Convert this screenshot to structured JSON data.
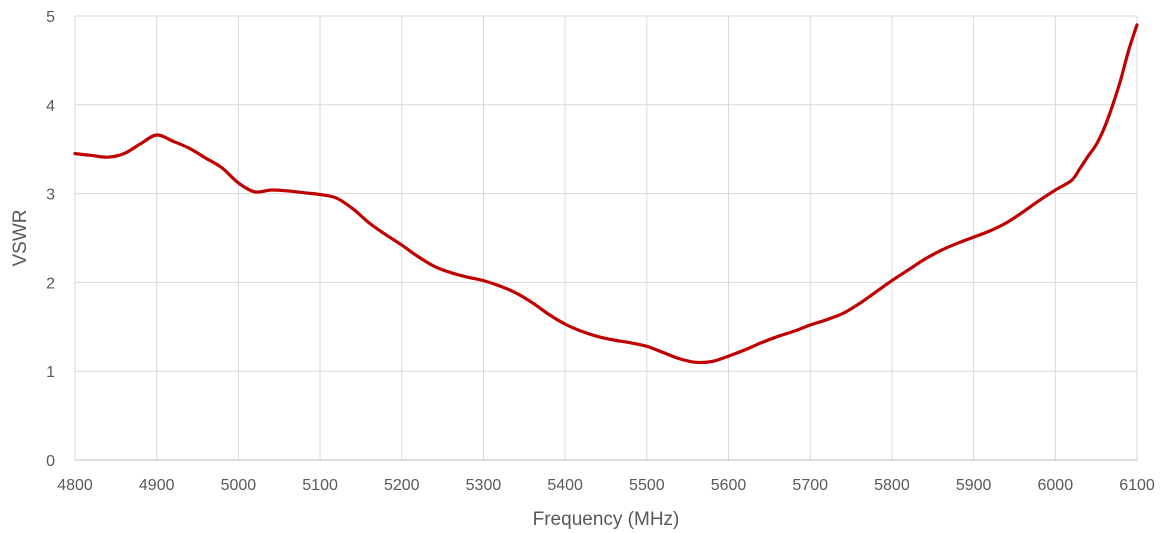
{
  "chart_data": {
    "type": "line",
    "title": "",
    "xlabel": "Frequency (MHz)",
    "ylabel": "VSWR",
    "xlim": [
      4800,
      6100
    ],
    "ylim": [
      0,
      5
    ],
    "x_ticks": [
      "4800",
      "4900",
      "5000",
      "5100",
      "5200",
      "5300",
      "5400",
      "5500",
      "5600",
      "5700",
      "5800",
      "5900",
      "6000",
      "6100"
    ],
    "y_ticks": [
      "0",
      "1",
      "2",
      "3",
      "4",
      "5"
    ],
    "grid": "vertical-and-horizontal",
    "legend": "none",
    "series": [
      {
        "color": "#c00000",
        "points": [
          [
            4800,
            3.45
          ],
          [
            4820,
            3.43
          ],
          [
            4840,
            3.41
          ],
          [
            4860,
            3.45
          ],
          [
            4880,
            3.56
          ],
          [
            4900,
            3.66
          ],
          [
            4920,
            3.59
          ],
          [
            4940,
            3.51
          ],
          [
            4960,
            3.4
          ],
          [
            4980,
            3.29
          ],
          [
            5000,
            3.12
          ],
          [
            5020,
            3.02
          ],
          [
            5040,
            3.04
          ],
          [
            5060,
            3.03
          ],
          [
            5080,
            3.01
          ],
          [
            5100,
            2.99
          ],
          [
            5120,
            2.95
          ],
          [
            5140,
            2.83
          ],
          [
            5160,
            2.67
          ],
          [
            5180,
            2.54
          ],
          [
            5200,
            2.42
          ],
          [
            5220,
            2.29
          ],
          [
            5240,
            2.18
          ],
          [
            5260,
            2.11
          ],
          [
            5280,
            2.06
          ],
          [
            5300,
            2.02
          ],
          [
            5320,
            1.96
          ],
          [
            5340,
            1.88
          ],
          [
            5360,
            1.77
          ],
          [
            5380,
            1.64
          ],
          [
            5400,
            1.53
          ],
          [
            5420,
            1.45
          ],
          [
            5440,
            1.39
          ],
          [
            5460,
            1.35
          ],
          [
            5480,
            1.32
          ],
          [
            5500,
            1.28
          ],
          [
            5520,
            1.21
          ],
          [
            5540,
            1.14
          ],
          [
            5560,
            1.1
          ],
          [
            5580,
            1.11
          ],
          [
            5600,
            1.17
          ],
          [
            5620,
            1.24
          ],
          [
            5640,
            1.32
          ],
          [
            5660,
            1.39
          ],
          [
            5680,
            1.45
          ],
          [
            5700,
            1.52
          ],
          [
            5720,
            1.58
          ],
          [
            5740,
            1.65
          ],
          [
            5760,
            1.76
          ],
          [
            5780,
            1.89
          ],
          [
            5800,
            2.02
          ],
          [
            5820,
            2.14
          ],
          [
            5840,
            2.26
          ],
          [
            5860,
            2.36
          ],
          [
            5880,
            2.44
          ],
          [
            5900,
            2.51
          ],
          [
            5920,
            2.58
          ],
          [
            5940,
            2.67
          ],
          [
            5960,
            2.79
          ],
          [
            5980,
            2.92
          ],
          [
            6000,
            3.04
          ],
          [
            6020,
            3.15
          ],
          [
            6030,
            3.28
          ],
          [
            6040,
            3.42
          ],
          [
            6050,
            3.55
          ],
          [
            6060,
            3.74
          ],
          [
            6070,
            3.99
          ],
          [
            6080,
            4.28
          ],
          [
            6090,
            4.62
          ],
          [
            6100,
            4.9
          ]
        ]
      }
    ]
  }
}
